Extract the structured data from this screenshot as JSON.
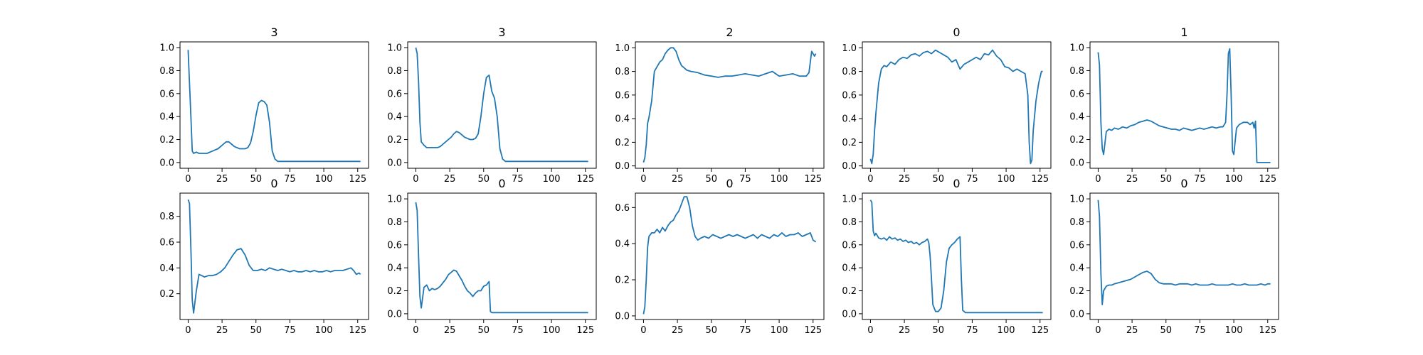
{
  "chart_data": [
    {
      "type": "line",
      "title": "3",
      "xlim": [
        -6,
        133
      ],
      "ylim": [
        -0.05,
        1.05
      ],
      "xticks": [
        0,
        25,
        50,
        75,
        100,
        125
      ],
      "yticks": [
        0.0,
        0.2,
        0.4,
        0.6,
        0.8,
        1.0
      ],
      "x": [
        0,
        2,
        3,
        4,
        6,
        8,
        10,
        12,
        14,
        16,
        18,
        20,
        22,
        24,
        26,
        28,
        30,
        32,
        34,
        36,
        38,
        40,
        42,
        44,
        46,
        48,
        50,
        52,
        54,
        56,
        58,
        60,
        62,
        64,
        66,
        70,
        75,
        80,
        90,
        100,
        110,
        120,
        127
      ],
      "y": [
        0.98,
        0.4,
        0.1,
        0.08,
        0.09,
        0.08,
        0.08,
        0.08,
        0.08,
        0.09,
        0.1,
        0.11,
        0.12,
        0.14,
        0.16,
        0.18,
        0.18,
        0.16,
        0.14,
        0.13,
        0.12,
        0.12,
        0.12,
        0.13,
        0.17,
        0.27,
        0.41,
        0.52,
        0.54,
        0.53,
        0.5,
        0.35,
        0.1,
        0.03,
        0.01,
        0.01,
        0.01,
        0.01,
        0.01,
        0.01,
        0.01,
        0.01,
        0.01
      ]
    },
    {
      "type": "line",
      "title": "3",
      "xlim": [
        -6,
        133
      ],
      "ylim": [
        -0.05,
        1.05
      ],
      "xticks": [
        0,
        25,
        50,
        75,
        100,
        125
      ],
      "yticks": [
        0.0,
        0.2,
        0.4,
        0.6,
        0.8,
        1.0
      ],
      "x": [
        0,
        1,
        2,
        3,
        4,
        6,
        8,
        10,
        12,
        14,
        16,
        18,
        20,
        22,
        24,
        26,
        28,
        30,
        32,
        34,
        36,
        38,
        40,
        42,
        44,
        46,
        48,
        50,
        52,
        54,
        56,
        58,
        60,
        62,
        64,
        66,
        70,
        75,
        80,
        90,
        100,
        110,
        120,
        127
      ],
      "y": [
        1.0,
        0.95,
        0.7,
        0.35,
        0.18,
        0.15,
        0.13,
        0.13,
        0.13,
        0.13,
        0.13,
        0.14,
        0.16,
        0.18,
        0.2,
        0.22,
        0.25,
        0.27,
        0.26,
        0.24,
        0.22,
        0.21,
        0.2,
        0.2,
        0.21,
        0.25,
        0.4,
        0.6,
        0.74,
        0.76,
        0.62,
        0.56,
        0.4,
        0.12,
        0.03,
        0.01,
        0.01,
        0.01,
        0.01,
        0.01,
        0.01,
        0.01,
        0.01,
        0.01
      ]
    },
    {
      "type": "line",
      "title": "2",
      "xlim": [
        -6,
        133
      ],
      "ylim": [
        -0.02,
        1.05
      ],
      "xticks": [
        0,
        25,
        50,
        75,
        100,
        125
      ],
      "yticks": [
        0.0,
        0.2,
        0.4,
        0.6,
        0.8,
        1.0
      ],
      "x": [
        0,
        1,
        2,
        3,
        4,
        6,
        8,
        10,
        12,
        14,
        16,
        18,
        20,
        22,
        24,
        26,
        28,
        30,
        32,
        35,
        40,
        45,
        50,
        55,
        60,
        65,
        70,
        75,
        80,
        85,
        90,
        95,
        100,
        105,
        110,
        115,
        120,
        122,
        124,
        126,
        127
      ],
      "y": [
        0.03,
        0.07,
        0.18,
        0.36,
        0.41,
        0.55,
        0.8,
        0.84,
        0.88,
        0.9,
        0.95,
        0.98,
        1.0,
        1.0,
        0.97,
        0.9,
        0.85,
        0.83,
        0.81,
        0.8,
        0.79,
        0.77,
        0.76,
        0.75,
        0.76,
        0.76,
        0.77,
        0.78,
        0.77,
        0.76,
        0.78,
        0.8,
        0.76,
        0.77,
        0.78,
        0.76,
        0.76,
        0.79,
        0.97,
        0.93,
        0.95
      ]
    },
    {
      "type": "line",
      "title": "0",
      "xlim": [
        -6,
        133
      ],
      "ylim": [
        -0.02,
        1.05
      ],
      "xticks": [
        0,
        25,
        50,
        75,
        100,
        125
      ],
      "yticks": [
        0.0,
        0.2,
        0.4,
        0.6,
        0.8,
        1.0
      ],
      "x": [
        0,
        1,
        2,
        3,
        4,
        6,
        8,
        10,
        12,
        15,
        18,
        21,
        24,
        27,
        30,
        33,
        36,
        39,
        42,
        45,
        48,
        51,
        54,
        57,
        60,
        63,
        66,
        69,
        72,
        75,
        78,
        81,
        84,
        87,
        90,
        93,
        96,
        99,
        102,
        105,
        108,
        111,
        114,
        116,
        117,
        118,
        119,
        120,
        122,
        124,
        126,
        127
      ],
      "y": [
        0.06,
        0.02,
        0.1,
        0.3,
        0.45,
        0.7,
        0.82,
        0.85,
        0.84,
        0.88,
        0.86,
        0.9,
        0.92,
        0.91,
        0.94,
        0.95,
        0.93,
        0.96,
        0.97,
        0.95,
        0.98,
        0.96,
        0.94,
        0.92,
        0.88,
        0.9,
        0.82,
        0.86,
        0.88,
        0.9,
        0.92,
        0.9,
        0.95,
        0.94,
        0.98,
        0.93,
        0.9,
        0.84,
        0.83,
        0.8,
        0.82,
        0.8,
        0.78,
        0.6,
        0.2,
        0.02,
        0.05,
        0.3,
        0.55,
        0.7,
        0.8,
        0.8
      ]
    },
    {
      "type": "line",
      "title": "1",
      "xlim": [
        -6,
        133
      ],
      "ylim": [
        -0.05,
        1.05
      ],
      "xticks": [
        0,
        25,
        50,
        75,
        100,
        125
      ],
      "yticks": [
        0.0,
        0.2,
        0.4,
        0.6,
        0.8,
        1.0
      ],
      "x": [
        0,
        1,
        2,
        3,
        4,
        6,
        8,
        10,
        12,
        15,
        18,
        21,
        24,
        27,
        30,
        33,
        36,
        39,
        42,
        45,
        48,
        51,
        54,
        57,
        60,
        63,
        66,
        69,
        72,
        75,
        78,
        81,
        84,
        87,
        90,
        92,
        94,
        95,
        96,
        97,
        98,
        99,
        100,
        102,
        104,
        107,
        110,
        112,
        114,
        115,
        116,
        117,
        120,
        125,
        127
      ],
      "y": [
        0.96,
        0.85,
        0.35,
        0.12,
        0.07,
        0.27,
        0.29,
        0.28,
        0.3,
        0.29,
        0.31,
        0.3,
        0.32,
        0.33,
        0.35,
        0.36,
        0.37,
        0.36,
        0.34,
        0.32,
        0.31,
        0.3,
        0.29,
        0.29,
        0.28,
        0.3,
        0.29,
        0.28,
        0.29,
        0.3,
        0.29,
        0.3,
        0.31,
        0.3,
        0.31,
        0.31,
        0.35,
        0.6,
        0.95,
        0.99,
        0.6,
        0.1,
        0.07,
        0.3,
        0.33,
        0.35,
        0.35,
        0.33,
        0.35,
        0.3,
        0.36,
        0.0,
        0.0,
        0.0,
        0.0
      ]
    },
    {
      "type": "line",
      "title": "0",
      "xlim": [
        -6,
        133
      ],
      "ylim": [
        0.0,
        0.98
      ],
      "xticks": [
        0,
        25,
        50,
        75,
        100,
        125
      ],
      "yticks": [
        0.2,
        0.4,
        0.6,
        0.8
      ],
      "x": [
        0,
        1,
        2,
        3,
        4,
        6,
        8,
        10,
        12,
        15,
        18,
        21,
        24,
        27,
        30,
        33,
        36,
        39,
        42,
        45,
        48,
        51,
        54,
        57,
        60,
        63,
        66,
        69,
        72,
        75,
        78,
        81,
        84,
        87,
        90,
        93,
        96,
        99,
        102,
        105,
        108,
        111,
        114,
        117,
        120,
        122,
        124,
        126,
        127
      ],
      "y": [
        0.93,
        0.9,
        0.55,
        0.15,
        0.05,
        0.22,
        0.35,
        0.34,
        0.33,
        0.34,
        0.34,
        0.35,
        0.37,
        0.4,
        0.45,
        0.5,
        0.54,
        0.55,
        0.5,
        0.42,
        0.38,
        0.38,
        0.39,
        0.38,
        0.4,
        0.39,
        0.38,
        0.39,
        0.38,
        0.37,
        0.38,
        0.37,
        0.37,
        0.38,
        0.37,
        0.38,
        0.37,
        0.37,
        0.38,
        0.37,
        0.38,
        0.38,
        0.38,
        0.39,
        0.4,
        0.38,
        0.35,
        0.36,
        0.35
      ]
    },
    {
      "type": "line",
      "title": "0",
      "xlim": [
        -6,
        133
      ],
      "ylim": [
        -0.05,
        1.05
      ],
      "xticks": [
        0,
        25,
        50,
        75,
        100,
        125
      ],
      "yticks": [
        0.0,
        0.2,
        0.4,
        0.6,
        0.8,
        1.0
      ],
      "x": [
        0,
        1,
        2,
        3,
        4,
        6,
        8,
        10,
        12,
        14,
        16,
        18,
        20,
        22,
        24,
        26,
        28,
        30,
        32,
        34,
        36,
        38,
        40,
        42,
        44,
        46,
        48,
        50,
        52,
        54,
        55,
        56,
        60,
        70,
        80,
        90,
        100,
        110,
        120,
        127
      ],
      "y": [
        0.97,
        0.9,
        0.5,
        0.15,
        0.05,
        0.23,
        0.25,
        0.2,
        0.22,
        0.21,
        0.22,
        0.24,
        0.27,
        0.3,
        0.34,
        0.36,
        0.38,
        0.37,
        0.33,
        0.29,
        0.24,
        0.2,
        0.18,
        0.15,
        0.18,
        0.2,
        0.2,
        0.24,
        0.25,
        0.28,
        0.02,
        0.01,
        0.01,
        0.01,
        0.01,
        0.01,
        0.01,
        0.01,
        0.01,
        0.01
      ]
    },
    {
      "type": "line",
      "title": "0",
      "xlim": [
        -6,
        133
      ],
      "ylim": [
        -0.02,
        0.68
      ],
      "xticks": [
        0,
        25,
        50,
        75,
        100,
        125
      ],
      "yticks": [
        0.0,
        0.2,
        0.4,
        0.6
      ],
      "x": [
        0,
        1,
        2,
        3,
        4,
        6,
        8,
        10,
        12,
        14,
        16,
        18,
        20,
        22,
        24,
        26,
        28,
        30,
        32,
        34,
        36,
        38,
        40,
        42,
        45,
        48,
        51,
        54,
        57,
        60,
        63,
        66,
        69,
        72,
        75,
        78,
        81,
        84,
        87,
        90,
        93,
        96,
        99,
        102,
        105,
        108,
        111,
        114,
        117,
        120,
        123,
        125,
        127
      ],
      "y": [
        0.01,
        0.05,
        0.2,
        0.38,
        0.44,
        0.46,
        0.46,
        0.48,
        0.46,
        0.49,
        0.47,
        0.5,
        0.52,
        0.53,
        0.56,
        0.58,
        0.62,
        0.66,
        0.66,
        0.6,
        0.5,
        0.44,
        0.42,
        0.43,
        0.44,
        0.43,
        0.45,
        0.44,
        0.43,
        0.44,
        0.45,
        0.44,
        0.45,
        0.44,
        0.43,
        0.44,
        0.45,
        0.43,
        0.45,
        0.44,
        0.43,
        0.45,
        0.44,
        0.46,
        0.44,
        0.45,
        0.45,
        0.46,
        0.44,
        0.45,
        0.46,
        0.42,
        0.41
      ]
    },
    {
      "type": "line",
      "title": "0",
      "xlim": [
        -6,
        133
      ],
      "ylim": [
        -0.05,
        1.05
      ],
      "xticks": [
        0,
        25,
        50,
        75,
        100,
        125
      ],
      "yticks": [
        0.0,
        0.2,
        0.4,
        0.6,
        0.8,
        1.0
      ],
      "x": [
        0,
        1,
        2,
        3,
        4,
        6,
        8,
        10,
        12,
        14,
        16,
        18,
        20,
        22,
        24,
        26,
        28,
        30,
        32,
        34,
        36,
        38,
        40,
        42,
        43,
        44,
        45,
        46,
        48,
        50,
        52,
        54,
        56,
        58,
        60,
        62,
        64,
        66,
        67,
        68,
        70,
        75,
        80,
        90,
        100,
        110,
        120,
        127
      ],
      "y": [
        0.99,
        0.97,
        0.72,
        0.68,
        0.7,
        0.66,
        0.65,
        0.66,
        0.64,
        0.67,
        0.65,
        0.66,
        0.64,
        0.65,
        0.63,
        0.64,
        0.62,
        0.63,
        0.61,
        0.62,
        0.6,
        0.62,
        0.63,
        0.65,
        0.62,
        0.5,
        0.3,
        0.08,
        0.02,
        0.02,
        0.05,
        0.2,
        0.45,
        0.57,
        0.6,
        0.62,
        0.65,
        0.67,
        0.3,
        0.03,
        0.01,
        0.01,
        0.01,
        0.01,
        0.01,
        0.01,
        0.01,
        0.01
      ]
    },
    {
      "type": "line",
      "title": "0",
      "xlim": [
        -6,
        133
      ],
      "ylim": [
        -0.05,
        1.05
      ],
      "xticks": [
        0,
        25,
        50,
        75,
        100,
        125
      ],
      "yticks": [
        0.0,
        0.2,
        0.4,
        0.6,
        0.8,
        1.0
      ],
      "x": [
        0,
        1,
        2,
        3,
        4,
        6,
        8,
        10,
        12,
        15,
        18,
        21,
        24,
        27,
        30,
        33,
        36,
        39,
        42,
        45,
        48,
        51,
        54,
        57,
        60,
        63,
        66,
        69,
        72,
        75,
        78,
        81,
        84,
        87,
        90,
        93,
        96,
        99,
        102,
        105,
        108,
        111,
        114,
        117,
        120,
        123,
        125,
        127
      ],
      "y": [
        0.99,
        0.85,
        0.35,
        0.08,
        0.2,
        0.24,
        0.25,
        0.25,
        0.26,
        0.27,
        0.28,
        0.29,
        0.3,
        0.32,
        0.34,
        0.36,
        0.37,
        0.35,
        0.3,
        0.27,
        0.26,
        0.26,
        0.26,
        0.25,
        0.26,
        0.26,
        0.26,
        0.25,
        0.26,
        0.25,
        0.25,
        0.25,
        0.26,
        0.25,
        0.25,
        0.25,
        0.25,
        0.26,
        0.25,
        0.25,
        0.26,
        0.25,
        0.25,
        0.25,
        0.26,
        0.25,
        0.26,
        0.26
      ]
    }
  ],
  "colors": {
    "line": "#1f77b4",
    "axes": "#000000"
  }
}
